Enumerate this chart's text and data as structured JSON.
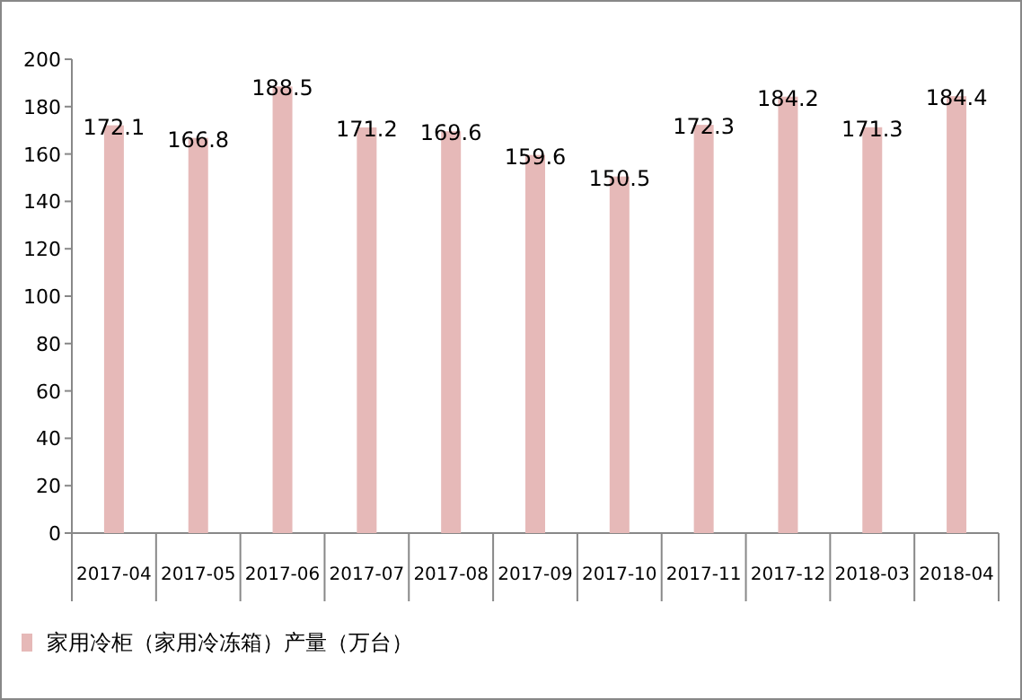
{
  "chart_data": {
    "type": "bar",
    "categories": [
      "2017-04",
      "2017-05",
      "2017-06",
      "2017-07",
      "2017-08",
      "2017-09",
      "2017-10",
      "2017-11",
      "2017-12",
      "2018-03",
      "2018-04"
    ],
    "series": [
      {
        "name": "家用冷柜（家用冷冻箱）产量（万台）",
        "color": "#e6b9b8",
        "values": [
          172.1,
          166.8,
          188.5,
          171.2,
          169.6,
          159.6,
          150.5,
          172.3,
          184.2,
          171.3,
          184.4
        ]
      }
    ],
    "ylim": [
      0,
      200
    ],
    "yticks": [
      0,
      20,
      40,
      60,
      80,
      100,
      120,
      140,
      160,
      180,
      200
    ],
    "data_labels": true,
    "legend": "bottom left",
    "grid": false
  }
}
